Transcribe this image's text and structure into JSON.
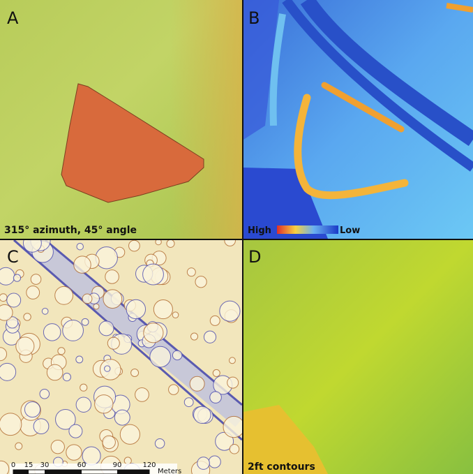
{
  "panels": [
    {
      "label": "A",
      "caption": "315° azimuth, 45° angle"
    },
    {
      "label": "B",
      "legend": {
        "high": "High",
        "low": "Low"
      }
    },
    {
      "label": "C",
      "scale_bar": {
        "ticks": [
          "0",
          "15",
          "30",
          "60",
          "90",
          "120"
        ],
        "unit": "Meters"
      }
    },
    {
      "label": "D",
      "caption": "2ft contours"
    }
  ]
}
